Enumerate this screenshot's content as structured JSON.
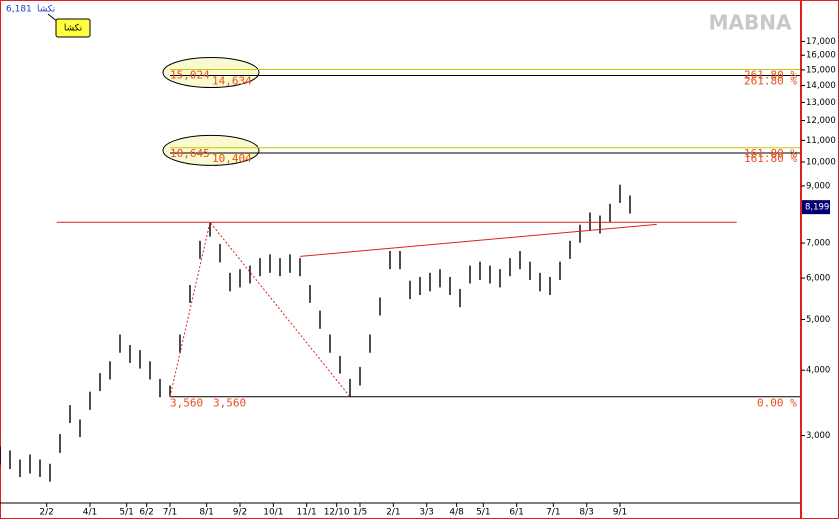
{
  "chart_data": {
    "type": "ohlc",
    "watermark": "MABNA",
    "symbol": "نکشا",
    "header_value": {
      "value": 6181,
      "label": "6,181"
    },
    "log_scale": true,
    "color": "#000000",
    "x": [
      0,
      3,
      6,
      9,
      12,
      15,
      18,
      21,
      24,
      27,
      30,
      33,
      36,
      39,
      42,
      45,
      48,
      51,
      54,
      57,
      60,
      63,
      66,
      69,
      72,
      75,
      78,
      81,
      84,
      87,
      90,
      93,
      96,
      99,
      102,
      105,
      108,
      111,
      114,
      117,
      120,
      123,
      126,
      129,
      132,
      135,
      138,
      141,
      144,
      147,
      150,
      153,
      156,
      159,
      162,
      165,
      168,
      171,
      174,
      177,
      180,
      183,
      186,
      189
    ],
    "high": [
      2860,
      2810,
      2700,
      2760,
      2700,
      2650,
      3020,
      3430,
      3220,
      3640,
      3950,
      4160,
      4680,
      4470,
      4370,
      4160,
      3850,
      3740,
      4680,
      5820,
      7070,
      7670,
      6970,
      6140,
      6240,
      6340,
      6550,
      6660,
      6550,
      6660,
      6550,
      5820,
      5200,
      4680,
      4260,
      3850,
      4060,
      4680,
      5510,
      6760,
      6760,
      5930,
      6030,
      6140,
      6240,
      6030,
      5720,
      6340,
      6450,
      6340,
      6240,
      6550,
      6760,
      6450,
      6140,
      6030,
      6450,
      7070,
      7590,
      8010,
      7900,
      8320,
      9050,
      8630
    ],
    "low": [
      2640,
      2590,
      2500,
      2540,
      2500,
      2450,
      2780,
      3170,
      2980,
      3360,
      3650,
      3840,
      4320,
      4130,
      4030,
      3840,
      3550,
      3560,
      4320,
      5380,
      6530,
      7200,
      6430,
      5660,
      5760,
      5860,
      6050,
      6140,
      6050,
      6140,
      6050,
      5380,
      4800,
      4320,
      3940,
      3560,
      3740,
      4320,
      5090,
      6240,
      6240,
      5470,
      5570,
      5660,
      5760,
      5570,
      5280,
      5860,
      5950,
      5860,
      5760,
      6050,
      6240,
      5950,
      5660,
      5570,
      5950,
      6530,
      7010,
      7390,
      7300,
      7680,
      8350,
      7970
    ],
    "xlim": [
      0,
      240
    ],
    "xticks": [
      {
        "value": 14,
        "label": "2/2"
      },
      {
        "value": 27,
        "label": "4/1"
      },
      {
        "value": 38,
        "label": "5/1"
      },
      {
        "value": 44,
        "label": "6/2"
      },
      {
        "value": 51,
        "label": "7/1"
      },
      {
        "value": 62,
        "label": "8/1"
      },
      {
        "value": 72,
        "label": "9/2"
      },
      {
        "value": 82,
        "label": "10/1"
      },
      {
        "value": 92,
        "label": "11/1"
      },
      {
        "value": 101,
        "label": "12/10"
      },
      {
        "value": 108,
        "label": "1/5"
      },
      {
        "value": 118,
        "label": "2/1"
      },
      {
        "value": 128,
        "label": "3/3"
      },
      {
        "value": 137,
        "label": "4/8"
      },
      {
        "value": 145,
        "label": "5/1"
      },
      {
        "value": 155,
        "label": "6/1"
      },
      {
        "value": 166,
        "label": "7/1"
      },
      {
        "value": 176,
        "label": "8/3"
      },
      {
        "value": 186,
        "label": "9/1"
      }
    ],
    "ylim": [
      2230,
      20400
    ],
    "yticks": [
      {
        "value": 3000,
        "label": "3,000"
      },
      {
        "value": 4000,
        "label": "4,000"
      },
      {
        "value": 5000,
        "label": "5,000"
      },
      {
        "value": 6000,
        "label": "6,000"
      },
      {
        "value": 7000,
        "label": "7,000"
      },
      {
        "value": 9000,
        "label": "9,000"
      },
      {
        "value": 10000,
        "label": "10,000"
      },
      {
        "value": 11000,
        "label": "11,000"
      },
      {
        "value": 12000,
        "label": "12,000"
      },
      {
        "value": 13000,
        "label": "13,000"
      },
      {
        "value": 14000,
        "label": "14,000"
      },
      {
        "value": 15000,
        "label": "15,000"
      },
      {
        "value": 16000,
        "label": "16,000"
      },
      {
        "value": 17000,
        "label": "17,000"
      }
    ],
    "last_price": {
      "value": 8199,
      "label": "8,199"
    },
    "fib_levels": [
      {
        "upper": {
          "value": 15024,
          "label": "15,024"
        },
        "lower": {
          "value": 14634,
          "label": "14,634"
        },
        "label": "261.80 %"
      },
      {
        "upper": {
          "value": 10645,
          "label": "10,645"
        },
        "lower": {
          "value": 10404,
          "label": "10,404"
        },
        "label": "161.80 %"
      }
    ],
    "fib_base": {
      "value": 3560,
      "label": "3,560",
      "percent": "0.00 %"
    },
    "lines": [
      {
        "x": [
          17,
          221
        ],
        "y": [
          7670,
          7670
        ],
        "color": "#e02020",
        "dash": false
      },
      {
        "x": [
          90,
          197
        ],
        "y": [
          6600,
          7600
        ],
        "color": "#e02020",
        "dash": false
      },
      {
        "x": [
          51,
          63,
          105
        ],
        "y": [
          3560,
          7670,
          3560
        ],
        "color": "#e02020",
        "dash": true
      }
    ]
  }
}
